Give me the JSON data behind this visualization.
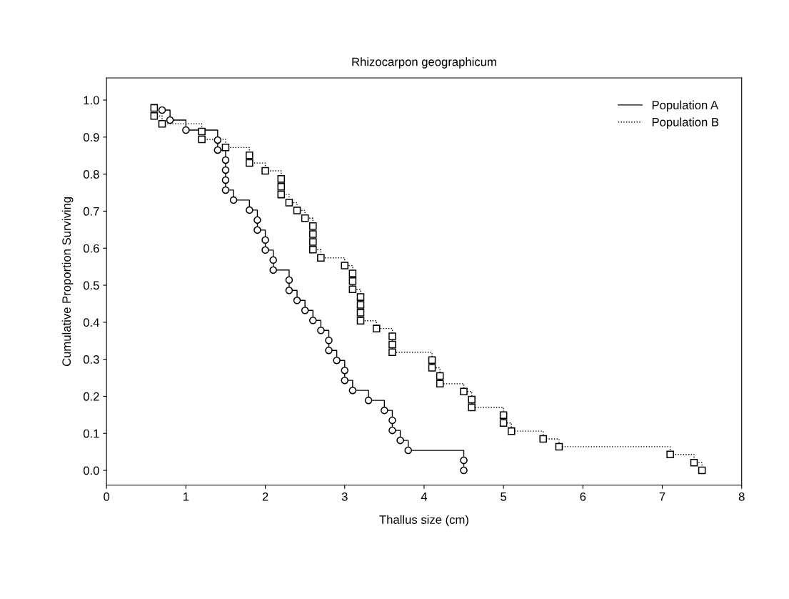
{
  "chart_data": {
    "type": "step",
    "title": "Rhizocarpon geographicum",
    "xlabel": "Thallus size (cm)",
    "ylabel": "Cumulative Proportion Surviving",
    "xlim": [
      0,
      8
    ],
    "xticks": [
      0,
      1,
      2,
      3,
      4,
      5,
      6,
      7,
      8
    ],
    "ylim": [
      -0.04,
      1.06
    ],
    "yticks": [
      {
        "value": 0,
        "label": "0.0"
      },
      0.1,
      0.2,
      0.3,
      0.4,
      0.5,
      0.6,
      0.7,
      0.8,
      0.9,
      {
        "value": 1,
        "label": "1.0"
      }
    ],
    "grid": false,
    "legend": "top right",
    "series": [
      {
        "name": "Population A",
        "color": "#000000",
        "marker": "circle",
        "line_style": "solid",
        "x": [
          0.7,
          0.8,
          1.0,
          1.4,
          1.4,
          1.5,
          1.5,
          1.5,
          1.5,
          1.6,
          1.8,
          1.9,
          1.9,
          2.0,
          2.0,
          2.1,
          2.1,
          2.3,
          2.3,
          2.4,
          2.5,
          2.6,
          2.7,
          2.8,
          2.8,
          2.9,
          3.0,
          3.0,
          3.1,
          3.3,
          3.5,
          3.6,
          3.6,
          3.7,
          3.8,
          4.5,
          4.5
        ],
        "values": [
          0.973,
          0.946,
          0.919,
          0.892,
          0.865,
          0.838,
          0.811,
          0.784,
          0.757,
          0.73,
          0.703,
          0.676,
          0.649,
          0.622,
          0.595,
          0.568,
          0.541,
          0.514,
          0.486,
          0.459,
          0.432,
          0.405,
          0.378,
          0.351,
          0.324,
          0.297,
          0.27,
          0.243,
          0.216,
          0.189,
          0.162,
          0.135,
          0.108,
          0.081,
          0.054,
          0.027,
          0.0
        ]
      },
      {
        "name": "Population B",
        "color": "#000000",
        "marker": "square",
        "line_style": "dotted",
        "x": [
          0.6,
          0.6,
          0.7,
          1.2,
          1.2,
          1.5,
          1.8,
          1.8,
          2.0,
          2.2,
          2.2,
          2.2,
          2.3,
          2.4,
          2.5,
          2.6,
          2.6,
          2.6,
          2.6,
          2.7,
          3.0,
          3.1,
          3.1,
          3.1,
          3.2,
          3.2,
          3.2,
          3.2,
          3.4,
          3.6,
          3.6,
          3.6,
          4.1,
          4.1,
          4.2,
          4.2,
          4.5,
          4.6,
          4.6,
          5.0,
          5.0,
          5.1,
          5.5,
          5.7,
          7.1,
          7.4,
          7.5
        ],
        "values": [
          0.979,
          0.957,
          0.936,
          0.915,
          0.894,
          0.872,
          0.851,
          0.83,
          0.809,
          0.787,
          0.766,
          0.745,
          0.723,
          0.702,
          0.681,
          0.66,
          0.638,
          0.617,
          0.596,
          0.574,
          0.553,
          0.532,
          0.511,
          0.489,
          0.468,
          0.447,
          0.426,
          0.404,
          0.383,
          0.362,
          0.34,
          0.319,
          0.298,
          0.277,
          0.255,
          0.234,
          0.213,
          0.191,
          0.17,
          0.149,
          0.128,
          0.106,
          0.085,
          0.064,
          0.043,
          0.021,
          0.0
        ]
      }
    ]
  }
}
